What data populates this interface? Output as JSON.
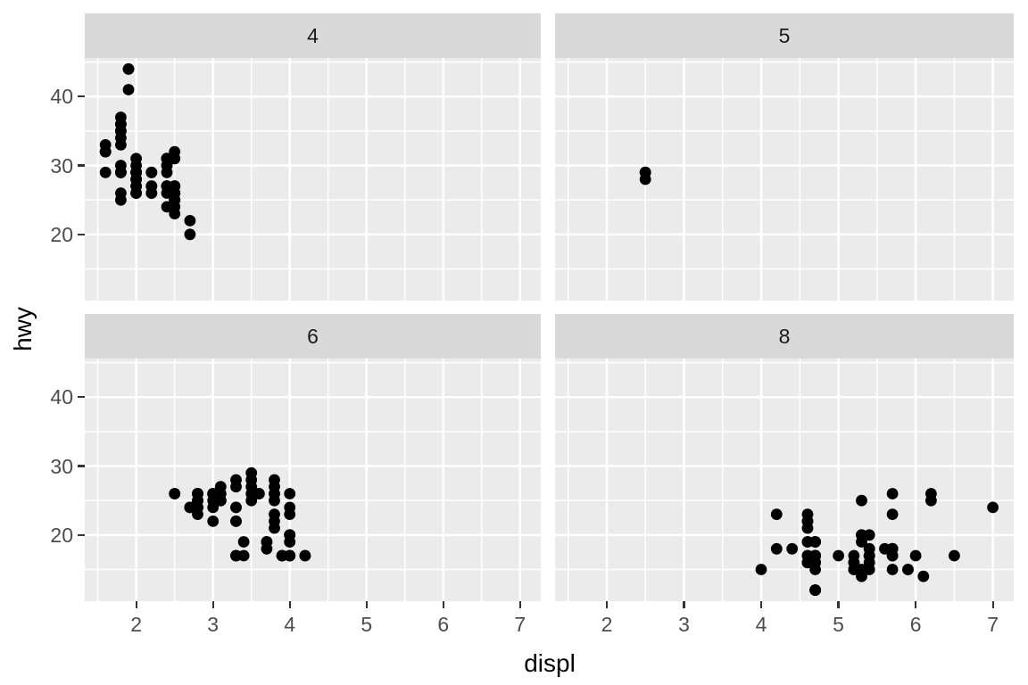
{
  "chart_data": {
    "type": "scatter",
    "xlabel": "displ",
    "ylabel": "hwy",
    "facet_variable_values": [
      "4",
      "5",
      "6",
      "8"
    ],
    "x_ticks": [
      2,
      3,
      4,
      5,
      6,
      7
    ],
    "y_ticks": [
      20,
      30,
      40
    ],
    "x_minor_gridlines": [
      1.5,
      2.5,
      3.5,
      4.5,
      5.5,
      6.5
    ],
    "y_minor_gridlines": [
      15,
      25,
      35,
      45
    ],
    "xlim": [
      1.33,
      7.27
    ],
    "ylim": [
      10.4,
      45.6
    ],
    "grid": "on",
    "legend": "none",
    "layout": "2x2 facet grid with shared axes; x tick labels on bottom row only, y tick labels on left column only; gray strip header above each panel",
    "point_color": "#000000",
    "colors": {
      "figure_bg": "#FFFFFF",
      "panel_bg": "#EBEBEB",
      "strip_bg": "#D9D9D9",
      "gridline": "#FFFFFF",
      "tick_text": "#4D4D4D",
      "strip_text": "#1A1A1A",
      "axis_title": "#000000",
      "tick_mark": "#333333"
    },
    "facets": [
      {
        "label": "4",
        "points": [
          [
            1.6,
            33
          ],
          [
            1.6,
            32
          ],
          [
            1.6,
            32
          ],
          [
            1.6,
            29
          ],
          [
            1.6,
            32
          ],
          [
            1.8,
            29
          ],
          [
            1.8,
            29
          ],
          [
            1.8,
            26
          ],
          [
            1.8,
            25
          ],
          [
            1.8,
            29
          ],
          [
            1.8,
            29
          ],
          [
            1.8,
            34
          ],
          [
            1.8,
            36
          ],
          [
            1.8,
            36
          ],
          [
            1.8,
            30
          ],
          [
            1.8,
            33
          ],
          [
            1.8,
            35
          ],
          [
            1.8,
            37
          ],
          [
            1.8,
            35
          ],
          [
            1.9,
            44
          ],
          [
            1.9,
            44
          ],
          [
            1.9,
            41
          ],
          [
            2.0,
            31
          ],
          [
            2.0,
            30
          ],
          [
            2.0,
            28
          ],
          [
            2.0,
            27
          ],
          [
            2.0,
            29
          ],
          [
            2.0,
            26
          ],
          [
            2.0,
            29
          ],
          [
            2.0,
            28
          ],
          [
            2.0,
            27
          ],
          [
            2.0,
            26
          ],
          [
            2.0,
            29
          ],
          [
            2.0,
            29
          ],
          [
            2.0,
            26
          ],
          [
            2.0,
            29
          ],
          [
            2.0,
            29
          ],
          [
            2.0,
            28
          ],
          [
            2.0,
            29
          ],
          [
            2.2,
            26
          ],
          [
            2.2,
            26
          ],
          [
            2.2,
            29
          ],
          [
            2.2,
            27
          ],
          [
            2.2,
            27
          ],
          [
            2.2,
            29
          ],
          [
            2.4,
            27
          ],
          [
            2.4,
            30
          ],
          [
            2.4,
            24
          ],
          [
            2.4,
            26
          ],
          [
            2.4,
            27
          ],
          [
            2.4,
            30
          ],
          [
            2.4,
            31
          ],
          [
            2.4,
            29
          ],
          [
            2.4,
            27
          ],
          [
            2.4,
            31
          ],
          [
            2.4,
            31
          ],
          [
            2.4,
            31
          ],
          [
            2.4,
            31
          ],
          [
            2.5,
            31
          ],
          [
            2.5,
            32
          ],
          [
            2.5,
            26
          ],
          [
            2.5,
            26
          ],
          [
            2.5,
            25
          ],
          [
            2.5,
            24
          ],
          [
            2.5,
            27
          ],
          [
            2.5,
            25
          ],
          [
            2.5,
            26
          ],
          [
            2.5,
            23
          ],
          [
            2.5,
            26
          ],
          [
            2.5,
            26
          ],
          [
            2.5,
            25
          ],
          [
            2.5,
            27
          ],
          [
            2.5,
            25
          ],
          [
            2.5,
            27
          ],
          [
            2.7,
            20
          ],
          [
            2.7,
            22
          ]
        ]
      },
      {
        "label": "5",
        "points": [
          [
            2.5,
            29
          ],
          [
            2.5,
            29
          ],
          [
            2.5,
            28
          ],
          [
            2.5,
            29
          ]
        ]
      },
      {
        "label": "6",
        "points": [
          [
            2.5,
            26
          ],
          [
            2.5,
            26
          ],
          [
            2.7,
            24
          ],
          [
            2.7,
            24
          ],
          [
            2.7,
            24
          ],
          [
            2.8,
            26
          ],
          [
            2.8,
            26
          ],
          [
            2.8,
            25
          ],
          [
            2.8,
            25
          ],
          [
            2.8,
            24
          ],
          [
            2.8,
            24
          ],
          [
            2.8,
            23
          ],
          [
            2.8,
            24
          ],
          [
            2.8,
            26
          ],
          [
            2.8,
            26
          ],
          [
            3.0,
            24
          ],
          [
            3.0,
            22
          ],
          [
            3.0,
            26
          ],
          [
            3.0,
            25
          ],
          [
            3.0,
            26
          ],
          [
            3.0,
            26
          ],
          [
            3.0,
            26
          ],
          [
            3.1,
            27
          ],
          [
            3.1,
            25
          ],
          [
            3.1,
            25
          ],
          [
            3.1,
            25
          ],
          [
            3.1,
            26
          ],
          [
            3.1,
            26
          ],
          [
            3.3,
            22
          ],
          [
            3.3,
            22
          ],
          [
            3.3,
            24
          ],
          [
            3.3,
            24
          ],
          [
            3.3,
            17
          ],
          [
            3.3,
            28
          ],
          [
            3.3,
            17
          ],
          [
            3.3,
            17
          ],
          [
            3.3,
            27
          ],
          [
            3.4,
            19
          ],
          [
            3.4,
            17
          ],
          [
            3.5,
            29
          ],
          [
            3.5,
            27
          ],
          [
            3.5,
            26
          ],
          [
            3.5,
            25
          ],
          [
            3.5,
            28
          ],
          [
            3.6,
            26
          ],
          [
            3.6,
            26
          ],
          [
            3.7,
            19
          ],
          [
            3.7,
            18
          ],
          [
            3.7,
            19
          ],
          [
            3.8,
            22
          ],
          [
            3.8,
            21
          ],
          [
            3.8,
            23
          ],
          [
            3.8,
            26
          ],
          [
            3.8,
            25
          ],
          [
            3.8,
            26
          ],
          [
            3.8,
            27
          ],
          [
            3.8,
            28
          ],
          [
            3.9,
            17
          ],
          [
            3.9,
            17
          ],
          [
            3.9,
            17
          ],
          [
            4.0,
            23
          ],
          [
            4.0,
            17
          ],
          [
            4.0,
            17
          ],
          [
            4.0,
            17
          ],
          [
            4.0,
            19
          ],
          [
            4.0,
            26
          ],
          [
            4.0,
            24
          ],
          [
            4.0,
            20
          ],
          [
            4.0,
            17
          ],
          [
            4.0,
            19
          ],
          [
            4.0,
            20
          ],
          [
            4.0,
            20
          ],
          [
            4.2,
            17
          ],
          [
            4.2,
            17
          ]
        ]
      },
      {
        "label": "8",
        "points": [
          [
            4.0,
            15
          ],
          [
            4.2,
            23
          ],
          [
            4.2,
            18
          ],
          [
            4.4,
            18
          ],
          [
            4.6,
            17
          ],
          [
            4.6,
            19
          ],
          [
            4.6,
            16
          ],
          [
            4.6,
            16
          ],
          [
            4.6,
            17
          ],
          [
            4.6,
            21
          ],
          [
            4.6,
            22
          ],
          [
            4.6,
            23
          ],
          [
            4.6,
            22
          ],
          [
            4.6,
            16
          ],
          [
            4.6,
            19
          ],
          [
            4.7,
            19
          ],
          [
            4.7,
            19
          ],
          [
            4.7,
            12
          ],
          [
            4.7,
            17
          ],
          [
            4.7,
            12
          ],
          [
            4.7,
            17
          ],
          [
            4.7,
            16
          ],
          [
            4.7,
            12
          ],
          [
            4.7,
            17
          ],
          [
            4.7,
            17
          ],
          [
            4.7,
            16
          ],
          [
            4.7,
            12
          ],
          [
            4.7,
            17
          ],
          [
            4.7,
            12
          ],
          [
            4.7,
            19
          ],
          [
            4.7,
            17
          ],
          [
            4.7,
            15
          ],
          [
            4.7,
            17
          ],
          [
            4.7,
            16
          ],
          [
            4.7,
            17
          ],
          [
            4.7,
            17
          ],
          [
            5.0,
            17
          ],
          [
            5.2,
            17
          ],
          [
            5.2,
            15
          ],
          [
            5.2,
            16
          ],
          [
            5.2,
            15
          ],
          [
            5.2,
            16
          ],
          [
            5.3,
            20
          ],
          [
            5.3,
            15
          ],
          [
            5.3,
            20
          ],
          [
            5.3,
            19
          ],
          [
            5.3,
            14
          ],
          [
            5.3,
            25
          ],
          [
            5.4,
            17
          ],
          [
            5.4,
            18
          ],
          [
            5.4,
            15
          ],
          [
            5.4,
            17
          ],
          [
            5.4,
            20
          ],
          [
            5.4,
            17
          ],
          [
            5.4,
            16
          ],
          [
            5.4,
            18
          ],
          [
            5.6,
            18
          ],
          [
            5.7,
            17
          ],
          [
            5.7,
            26
          ],
          [
            5.7,
            23
          ],
          [
            5.7,
            15
          ],
          [
            5.7,
            18
          ],
          [
            5.7,
            17
          ],
          [
            5.7,
            18
          ],
          [
            5.7,
            18
          ],
          [
            5.7,
            18
          ],
          [
            5.9,
            15
          ],
          [
            5.9,
            15
          ],
          [
            6.0,
            17
          ],
          [
            6.1,
            14
          ],
          [
            6.2,
            26
          ],
          [
            6.2,
            25
          ],
          [
            6.5,
            17
          ],
          [
            7.0,
            24
          ]
        ]
      }
    ]
  }
}
